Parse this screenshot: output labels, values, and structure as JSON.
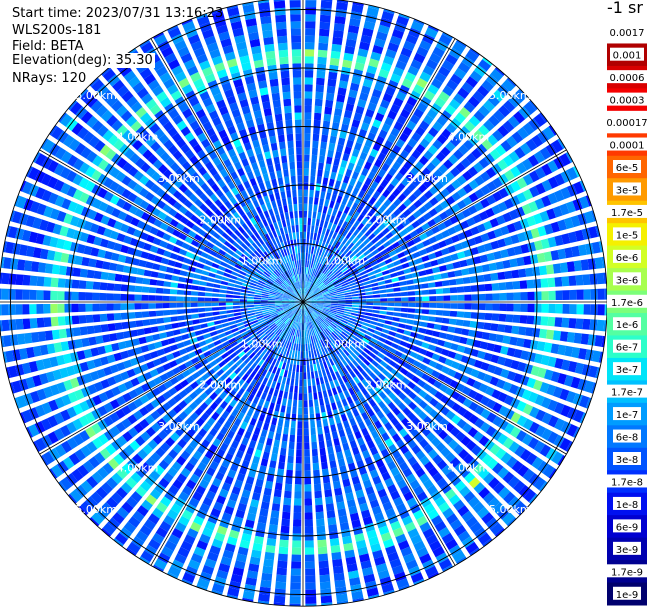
{
  "info": {
    "start_time": "Start time: 2023/07/31 13:16:23",
    "instrument": "WLS200s-181",
    "field": "Field: BETA",
    "elevation": "Elevation(deg): 35.30",
    "nrays": "NRays: 120"
  },
  "colorbar": {
    "units": "-1 sr",
    "ticks": [
      "0.0017",
      "0.001",
      "0.0006",
      "0.0003",
      "0.00017",
      "0.0001",
      "6e-5",
      "3e-5",
      "1.7e-5",
      "1e-5",
      "6e-6",
      "3e-6",
      "1.7e-6",
      "1e-6",
      "6e-7",
      "3e-7",
      "1.7e-7",
      "1e-7",
      "6e-8",
      "3e-8",
      "1.7e-8",
      "1e-8",
      "6e-9",
      "3e-9",
      "1.7e-9",
      "1e-9"
    ],
    "colors": [
      "#ffffff",
      "#b00000",
      "#d80000",
      "#f50000",
      "#ffffff",
      "#ff3a00",
      "#ff6600",
      "#ff9a00",
      "#ffc400",
      "#f5f000",
      "#d2ff24",
      "#a8ff4e",
      "#7cff7a",
      "#54ffa2",
      "#2cffca",
      "#00e4f8",
      "#00c0ff",
      "#009cff",
      "#0078ff",
      "#0054ff",
      "#0030ff",
      "#0010f0",
      "#0000d0",
      "#0000b0",
      "#000090",
      "#00006e"
    ]
  },
  "chart_data": {
    "type": "heatmap",
    "projection": "polar PPI",
    "field": "BETA",
    "units": "-1 sr",
    "elevation_deg": 35.3,
    "n_rays": 120,
    "range_ring_labels": [
      "1.00km",
      "2.00km",
      "3.00km",
      "4.00km",
      "5.00km"
    ],
    "range_rings_km": [
      1,
      2,
      3,
      4,
      5
    ],
    "max_range_km": 5.2,
    "scale": "log",
    "vmin": 1e-09,
    "vmax": 0.0017,
    "typical_value": 2e-08,
    "ring_feature": {
      "range_km": 4.2,
      "value": 1.7e-06
    }
  }
}
